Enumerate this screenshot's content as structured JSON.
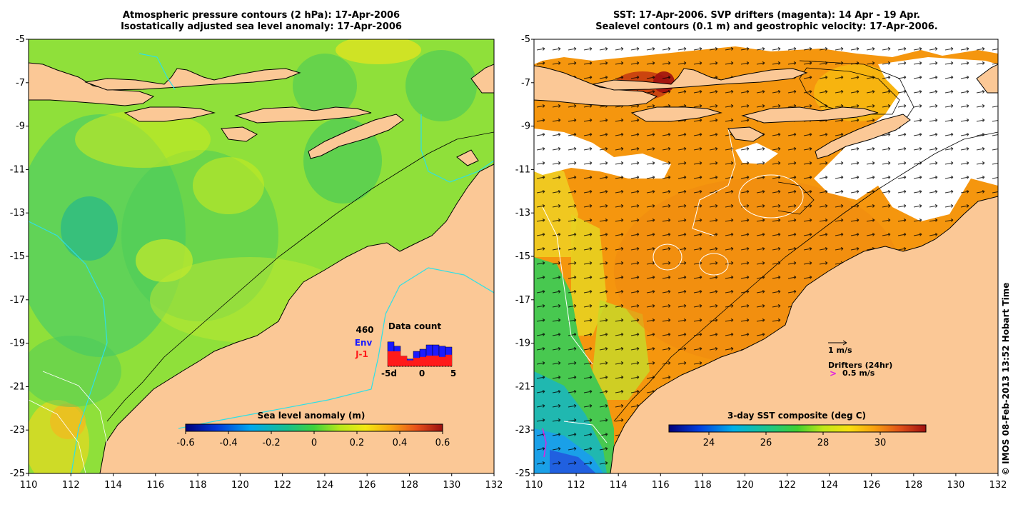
{
  "left_panel": {
    "title_line1": "Atmospheric pressure contours (2 hPa): 17-Apr-2006",
    "title_line2": "Isostatically adjusted sea level anomaly: 17-Apr-2006",
    "colorbar_title": "Sea level anomaly (m)",
    "colorbar_ticks": [
      "-0.6",
      "-0.4",
      "-0.2",
      "0",
      "0.2",
      "0.4",
      "0.6"
    ],
    "data_count": {
      "total": "460",
      "env_label": "Env",
      "j1_label": "J-1",
      "title": "Data count",
      "axis_ticks": [
        "-5d",
        "0",
        "5"
      ],
      "env_fraction": [
        0.57,
        0.47,
        0.24,
        0.17,
        0.35,
        0.4,
        0.5,
        0.5,
        0.47,
        0.45
      ],
      "j1_fraction": [
        0.35,
        0.35,
        0.24,
        0.14,
        0.2,
        0.22,
        0.25,
        0.25,
        0.22,
        0.27
      ],
      "env_color": "#1a1aff",
      "j1_color": "#ff1a1a"
    }
  },
  "right_panel": {
    "title_line1": "SST: 17-Apr-2006. SVP drifters (magenta): 14 Apr - 19 Apr.",
    "title_line2": "Sealevel contours (0.1 m) and geostrophic velocity: 17-Apr-2006.",
    "colorbar_title": "3-day SST composite (deg C)",
    "colorbar_ticks": [
      "24",
      "26",
      "28",
      "30"
    ],
    "velocity_label": "1 m/s",
    "drifters_label": "Drifters (24hr)",
    "drifters_marker": ">",
    "drifters_speed": "0.5 m/s"
  },
  "axes": {
    "x_ticks": [
      "110",
      "112",
      "114",
      "116",
      "118",
      "120",
      "122",
      "124",
      "126",
      "128",
      "130",
      "132"
    ],
    "y_ticks": [
      "-5",
      "-7",
      "-9",
      "-11",
      "-13",
      "-15",
      "-17",
      "-19",
      "-21",
      "-23",
      "-25"
    ],
    "lon_range": [
      110,
      132
    ],
    "lat_range": [
      -25,
      -5
    ]
  },
  "credit": "© IMOS 08-Feb-2013 13:52 Hobart Time",
  "colors": {
    "land": "#fbc896",
    "sea_base": "#8fe03a",
    "sst_base": "#f5960e",
    "cloud": "#ffffff",
    "coast": "#000000",
    "pressure_contour": "#2ee0e6"
  }
}
